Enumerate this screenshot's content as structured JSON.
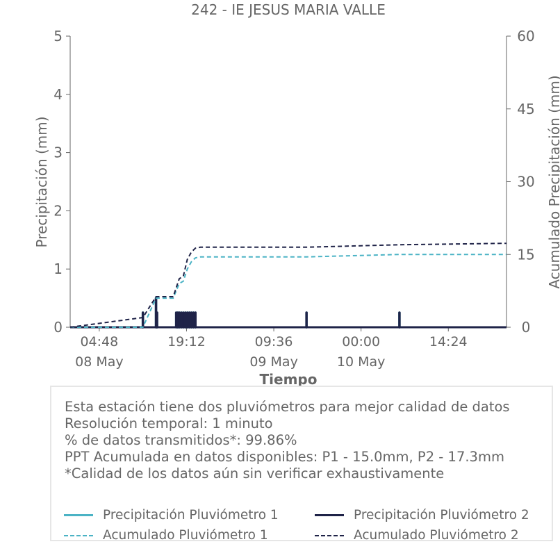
{
  "colors": {
    "p1": "#4bb3c5",
    "p2": "#1f2348",
    "text": "#666666",
    "axis": "#666666"
  },
  "chart_data": {
    "type": "line",
    "title": "242 - IE JESUS MARIA VALLE",
    "xlabel": "Tiempo",
    "ylabel": "Precipitación (mm)",
    "y2label": "Acumulado Precipitación (mm)",
    "xlim": [
      "2024-05-08 00:00",
      "2024-05-11 00:00"
    ],
    "ylim": [
      0,
      5
    ],
    "y2lim": [
      0,
      60
    ],
    "yticks": [
      0,
      1,
      2,
      3,
      4,
      5
    ],
    "y2ticks": [
      0,
      15,
      30,
      45,
      60
    ],
    "xticks": [
      {
        "x": "2024-05-08 04:48",
        "label": "04:48"
      },
      {
        "x": "2024-05-08 19:12",
        "label": "19:12"
      },
      {
        "x": "2024-05-09 09:36",
        "label": "09:36"
      },
      {
        "x": "2024-05-10 00:00",
        "label": "00:00"
      },
      {
        "x": "2024-05-10 14:24",
        "label": "14:24"
      }
    ],
    "date_labels": [
      {
        "x": "2024-05-08 04:48",
        "label": "08 May"
      },
      {
        "x": "2024-05-09 09:36",
        "label": "09 May"
      },
      {
        "x": "2024-05-10 00:00",
        "label": "10 May"
      }
    ],
    "grid": false,
    "legend_position": "bottom",
    "series": [
      {
        "name": "Precipitación Pluviómetro 1",
        "axis": "left",
        "style": "solid",
        "color": "#4bb3c5",
        "x": [
          "2024-05-08 12:00",
          "2024-05-08 14:10",
          "2024-05-08 14:20",
          "2024-05-08 17:30",
          "2024-05-08 17:45",
          "2024-05-08 18:00",
          "2024-05-08 18:20",
          "2024-05-08 18:40",
          "2024-05-08 19:00",
          "2024-05-08 19:20",
          "2024-05-08 19:40",
          "2024-05-08 20:00",
          "2024-05-08 20:20",
          "2024-05-08 20:40",
          "2024-05-09 15:00",
          "2024-05-10 06:20"
        ],
        "y": [
          0.25,
          0.5,
          0.25,
          0.25,
          0.25,
          0.25,
          0.25,
          0.25,
          0.25,
          0.25,
          0.25,
          0.25,
          0.25,
          0.25,
          0.25,
          0.25
        ]
      },
      {
        "name": "Precipitación Pluviómetro 2",
        "axis": "left",
        "style": "solid",
        "color": "#1f2348",
        "x": [
          "2024-05-08 12:00",
          "2024-05-08 14:10",
          "2024-05-08 14:20",
          "2024-05-08 17:30",
          "2024-05-08 17:45",
          "2024-05-08 18:00",
          "2024-05-08 18:20",
          "2024-05-08 18:40",
          "2024-05-08 19:00",
          "2024-05-08 19:20",
          "2024-05-08 19:40",
          "2024-05-08 20:00",
          "2024-05-08 20:20",
          "2024-05-08 20:40",
          "2024-05-09 15:00",
          "2024-05-10 06:20"
        ],
        "y": [
          0.25,
          0.5,
          0.25,
          0.25,
          0.25,
          0.25,
          0.25,
          0.25,
          0.25,
          0.25,
          0.25,
          0.25,
          0.25,
          0.25,
          0.25,
          0.25
        ]
      },
      {
        "name": "Acumulado Pluviómetro 1",
        "axis": "right",
        "style": "dashed",
        "color": "#4bb3c5",
        "x": [
          "2024-05-08 00:00",
          "2024-05-08 12:00",
          "2024-05-08 14:10",
          "2024-05-08 17:00",
          "2024-05-08 18:00",
          "2024-05-08 18:40",
          "2024-05-08 19:20",
          "2024-05-08 20:00",
          "2024-05-08 20:40",
          "2024-05-08 21:30",
          "2024-05-09 15:00",
          "2024-05-10 06:20",
          "2024-05-11 00:00"
        ],
        "y": [
          0,
          0,
          6,
          6,
          9,
          9.5,
          12,
          13.5,
          14.3,
          14.5,
          14.5,
          15.0,
          15.0
        ]
      },
      {
        "name": "Acumulado Pluviómetro 2",
        "axis": "right",
        "style": "dashed",
        "color": "#1f2348",
        "x": [
          "2024-05-08 00:00",
          "2024-05-08 12:00",
          "2024-05-08 14:10",
          "2024-05-08 17:00",
          "2024-05-08 18:00",
          "2024-05-08 18:40",
          "2024-05-08 19:20",
          "2024-05-08 20:00",
          "2024-05-08 20:40",
          "2024-05-08 21:30",
          "2024-05-09 15:00",
          "2024-05-10 06:20",
          "2024-05-11 00:00"
        ],
        "y": [
          0,
          2.0,
          6.3,
          6.3,
          10,
          10.5,
          14,
          15.5,
          16.3,
          16.5,
          16.5,
          17.0,
          17.3
        ]
      }
    ]
  },
  "info": {
    "lines": [
      "Esta estación tiene dos pluviómetros para mejor calidad de datos",
      "Resolución temporal: 1 minuto",
      "% de datos transmitidos*: 99.86%",
      "PPT Acumulada en datos disponibles: P1 - 15.0mm, P2 - 17.3mm",
      "*Calidad de los datos aún sin verificar exhaustivamente"
    ]
  },
  "legend": {
    "items": [
      {
        "label": "Precipitación Pluviómetro 1",
        "color": "#4bb3c5",
        "style": "solid"
      },
      {
        "label": "Precipitación Pluviómetro 2",
        "color": "#1f2348",
        "style": "solid"
      },
      {
        "label": "Acumulado Pluviómetro 1",
        "color": "#4bb3c5",
        "style": "dashed"
      },
      {
        "label": "Acumulado Pluviómetro 2",
        "color": "#1f2348",
        "style": "dashed"
      }
    ]
  }
}
